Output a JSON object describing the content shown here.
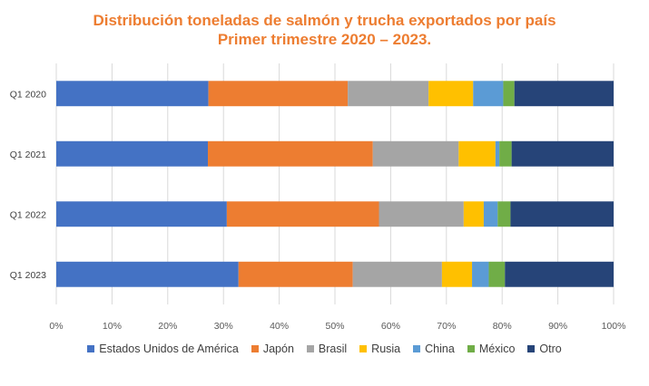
{
  "chart_data": {
    "type": "bar",
    "orientation": "horizontal",
    "stacked": true,
    "title": "Distribución toneladas de salmón y trucha exportados por país",
    "subtitle": "Primer trimestre 2020 – 2023.",
    "categories": [
      "Q1 2020",
      "Q1 2021",
      "Q1 2022",
      "Q1 2023"
    ],
    "xlim": [
      0,
      100
    ],
    "xticks": [
      "0%",
      "10%",
      "20%",
      "30%",
      "40%",
      "50%",
      "60%",
      "70%",
      "80%",
      "90%",
      "100%"
    ],
    "grid": "vertical",
    "legend_position": "bottom",
    "series": [
      {
        "name": "Estados Unidos de América",
        "color": "#4472C4",
        "values": [
          27.3,
          27.2,
          30.6,
          32.7
        ]
      },
      {
        "name": "Japón",
        "color": "#ED7D31",
        "values": [
          25.0,
          29.6,
          27.3,
          20.5
        ]
      },
      {
        "name": "Brasil",
        "color": "#A5A5A5",
        "values": [
          14.5,
          15.4,
          15.2,
          16.0
        ]
      },
      {
        "name": "Rusia",
        "color": "#FFC000",
        "values": [
          8.0,
          6.6,
          3.6,
          5.4
        ]
      },
      {
        "name": "China",
        "color": "#5B9BD5",
        "values": [
          5.4,
          0.7,
          2.5,
          3.0
        ]
      },
      {
        "name": "México",
        "color": "#70AD47",
        "values": [
          2.0,
          2.2,
          2.3,
          2.9
        ]
      },
      {
        "name": "Otro",
        "color": "#264478",
        "values": [
          17.8,
          18.3,
          18.5,
          19.5
        ]
      }
    ]
  }
}
